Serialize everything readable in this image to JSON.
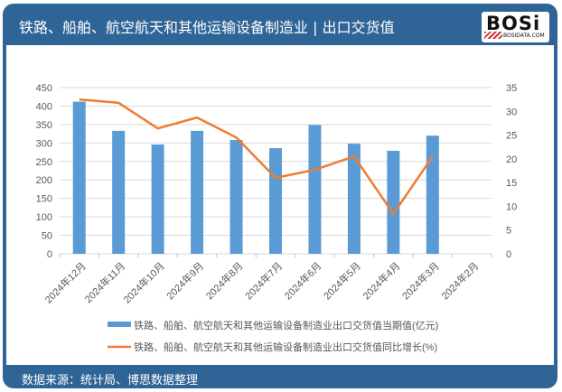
{
  "header": {
    "title": "铁路、船舶、航空航天和其他运输设备制造业 | 出口交货值",
    "logo_text": "BOSi",
    "logo_subtext": "BOSIDATA.COM"
  },
  "footer": {
    "source": "数据来源：统计局、博思数据整理"
  },
  "colors": {
    "frame": "#2f6497",
    "bar": "#5b9bd5",
    "line": "#ed7d31",
    "grid": "#d9d9d9"
  },
  "chart_data": {
    "type": "bar+line",
    "title": "铁路、船舶、航空航天和其他运输设备制造业 | 出口交货值",
    "categories": [
      "2024年12月",
      "2024年11月",
      "2024年10月",
      "2024年9月",
      "2024年8月",
      "2024年7月",
      "2024年6月",
      "2024年5月",
      "2024年4月",
      "2024年3月",
      "2024年2月"
    ],
    "series": [
      {
        "name": "铁路、船舶、航空航天和其他运输设备制造业出口交货值当期值(亿元)",
        "type": "bar",
        "axis": "left",
        "values": [
          412,
          333,
          296,
          333,
          308,
          286,
          349,
          298,
          279,
          320,
          null
        ]
      },
      {
        "name": "铁路、船舶、航空航天和其他运输设备制造业出口交货值同比增长(%)",
        "type": "line",
        "axis": "right",
        "values": [
          32.5,
          31.8,
          26.4,
          28.7,
          24.5,
          16.0,
          17.7,
          20.5,
          8.4,
          20.5,
          null
        ]
      }
    ],
    "left_axis": {
      "ticks": [
        0,
        50,
        100,
        150,
        200,
        250,
        300,
        350,
        400,
        450
      ],
      "ylim": [
        0,
        450
      ]
    },
    "right_axis": {
      "ticks": [
        0,
        5,
        10,
        15,
        20,
        25,
        30,
        35
      ],
      "ylim": [
        0,
        35
      ]
    },
    "grid": true,
    "legend_position": "bottom"
  }
}
